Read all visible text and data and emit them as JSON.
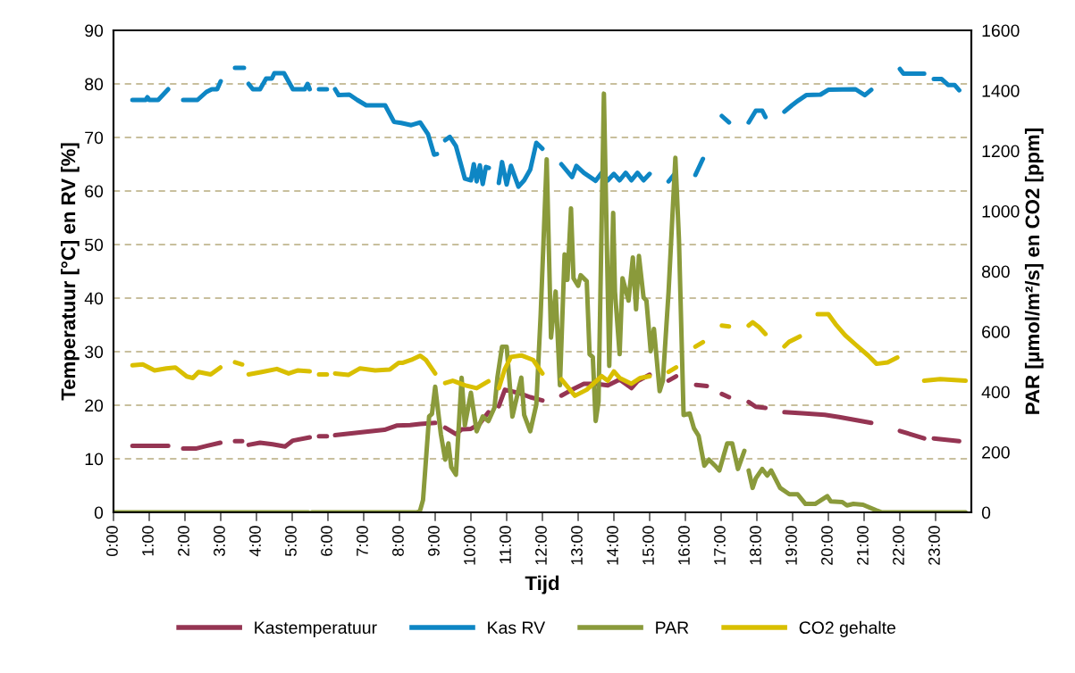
{
  "chart_data": {
    "type": "line",
    "xlabel": "Tijd",
    "ylabel": "Temperatuur [°C] en RV [%]",
    "y2label": "PAR [µmol/m²/s] en CO2 [ppm]",
    "xlim": [
      0,
      24
    ],
    "xticks": [
      {
        "value": 0,
        "label": "0:00"
      },
      {
        "value": 1,
        "label": "1:00"
      },
      {
        "value": 2,
        "label": "2:00"
      },
      {
        "value": 3,
        "label": "3:00"
      },
      {
        "value": 4,
        "label": "4:00"
      },
      {
        "value": 5,
        "label": "5:00"
      },
      {
        "value": 6,
        "label": "6:00"
      },
      {
        "value": 7,
        "label": "7:00"
      },
      {
        "value": 8,
        "label": "8:00"
      },
      {
        "value": 9,
        "label": "9:00"
      },
      {
        "value": 10,
        "label": "10:00"
      },
      {
        "value": 11,
        "label": "11:00"
      },
      {
        "value": 12,
        "label": "12:00"
      },
      {
        "value": 13,
        "label": "13:00"
      },
      {
        "value": 14,
        "label": "14:00"
      },
      {
        "value": 15,
        "label": "15:00"
      },
      {
        "value": 16,
        "label": "16:00"
      },
      {
        "value": 17,
        "label": "17:00"
      },
      {
        "value": 18,
        "label": "18:00"
      },
      {
        "value": 19,
        "label": "19:00"
      },
      {
        "value": 20,
        "label": "20:00"
      },
      {
        "value": 21,
        "label": "21:00"
      },
      {
        "value": 22,
        "label": "22:00"
      },
      {
        "value": 23,
        "label": "23:00"
      }
    ],
    "ylim": [
      0,
      90
    ],
    "yticks": [
      0,
      10,
      20,
      30,
      40,
      50,
      60,
      70,
      80,
      90
    ],
    "y2lim": [
      0,
      1600
    ],
    "y2ticks": [
      0,
      200,
      400,
      600,
      800,
      1000,
      1200,
      1400,
      1600
    ],
    "grid": "y",
    "legend": "bottom",
    "line_style": "solid",
    "marker": "none",
    "series": [
      {
        "name": "Kastemperatuur",
        "color": "#953553",
        "x": [
          0.53,
          1.2,
          1.53,
          1.74,
          1.95,
          2.3,
          2.6,
          2.99,
          3.2,
          3.4,
          3.6,
          3.69,
          3.78,
          4.1,
          4.45,
          4.8,
          5.02,
          5.49,
          5.62,
          5.75,
          5.97,
          6.08,
          6.2,
          7.0,
          7.58,
          7.92,
          8.3,
          8.58,
          9.0,
          9.14,
          9.28,
          9.58,
          9.74,
          10.0,
          10.24,
          10.49,
          10.64,
          10.78,
          10.95,
          11.33,
          11.66,
          12.0,
          12.26,
          12.53,
          12.83,
          13.16,
          13.49,
          13.83,
          14.16,
          14.49,
          14.66,
          15.0,
          15.26,
          15.53,
          15.74,
          16.0,
          16.3,
          16.6,
          16.85,
          17.02,
          17.22,
          17.5,
          17.77,
          17.97,
          18.24,
          18.5,
          18.77,
          19.27,
          19.9,
          20.3,
          21.2,
          21.6,
          22.0,
          22.68,
          22.8,
          22.95,
          23.66
        ],
        "values": [
          12.4,
          12.4,
          12.4,
          null,
          11.9,
          11.9,
          12.4,
          13.0,
          null,
          13.3,
          13.3,
          null,
          12.6,
          13.0,
          12.7,
          12.3,
          13.4,
          14.0,
          null,
          14.2,
          14.2,
          null,
          14.4,
          15.0,
          15.4,
          16.2,
          16.3,
          16.5,
          16.7,
          null,
          15.8,
          14.6,
          15.5,
          15.6,
          16.5,
          18.7,
          null,
          19.8,
          22.9,
          22.3,
          21.5,
          20.9,
          null,
          21.8,
          22.9,
          24.0,
          24.0,
          23.7,
          24.8,
          23.2,
          24.5,
          25.7,
          null,
          24.6,
          25.4,
          null,
          23.8,
          23.6,
          null,
          22.1,
          21.5,
          null,
          20.6,
          19.7,
          19.5,
          null,
          18.7,
          18.5,
          18.2,
          17.8,
          16.7,
          null,
          15.2,
          13.8,
          null,
          13.8,
          13.3
        ]
      },
      {
        "name": "Kas RV",
        "color": "#0e86c4",
        "x": [
          0.53,
          0.9,
          0.95,
          1.0,
          1.25,
          1.53,
          1.74,
          1.95,
          2.35,
          2.6,
          2.75,
          2.9,
          3.0,
          3.2,
          3.4,
          3.65,
          3.7,
          3.78,
          3.9,
          4.1,
          4.27,
          4.43,
          4.5,
          4.77,
          5.02,
          5.35,
          5.43,
          5.49,
          5.62,
          5.75,
          5.97,
          6.08,
          6.2,
          6.3,
          6.6,
          6.82,
          7.07,
          7.6,
          7.85,
          8.05,
          8.33,
          8.58,
          8.8,
          8.97,
          9.05,
          9.16,
          9.28,
          9.41,
          9.58,
          9.83,
          10.0,
          10.08,
          10.16,
          10.25,
          10.33,
          10.42,
          10.5,
          10.64,
          10.78,
          10.87,
          11.0,
          11.12,
          11.33,
          11.49,
          11.66,
          11.83,
          12.0,
          12.26,
          12.53,
          12.83,
          12.95,
          13.16,
          13.49,
          13.66,
          13.83,
          14.0,
          14.16,
          14.33,
          14.49,
          14.66,
          14.83,
          15.0,
          15.26,
          15.53,
          15.7,
          16.0,
          16.28,
          16.49,
          16.75,
          17.02,
          17.22,
          17.5,
          17.77,
          17.97,
          18.15,
          18.24,
          18.5,
          18.77,
          18.98,
          19.16,
          19.38,
          19.78,
          20.0,
          20.76,
          21.02,
          21.2,
          21.6,
          22.0,
          22.1,
          22.68,
          22.8,
          22.95,
          23.17,
          23.35,
          23.53,
          23.66
        ],
        "values": [
          77,
          77,
          77.5,
          77,
          77,
          79,
          null,
          77,
          77,
          78.5,
          79,
          79,
          80.5,
          null,
          83,
          83,
          null,
          80,
          79,
          79,
          81,
          81,
          82,
          82,
          79,
          79,
          80,
          79,
          null,
          79,
          79,
          null,
          79,
          77.9,
          78,
          77,
          76,
          76,
          72.9,
          72.7,
          72.3,
          72.8,
          70.6,
          66.8,
          66.9,
          null,
          69.5,
          70.1,
          68.4,
          62.3,
          62,
          65,
          61.8,
          64.8,
          61.3,
          64.5,
          64.3,
          null,
          61.5,
          65.4,
          61.2,
          64.7,
          60.8,
          62,
          64,
          69,
          67.9,
          null,
          65,
          62.6,
          64.7,
          63.4,
          61.9,
          63.4,
          62,
          63.2,
          62,
          63.4,
          62,
          63.4,
          62,
          63.2,
          null,
          61.8,
          63.2,
          null,
          63,
          66,
          null,
          74,
          72.8,
          null,
          72.8,
          75,
          75,
          73.8,
          null,
          74.8,
          76,
          76.9,
          77.9,
          78,
          78.9,
          79,
          77.9,
          78.9,
          null,
          82.8,
          81.9,
          81.9,
          null,
          80.9,
          80.9,
          79.8,
          79.8,
          78.8
        ]
      },
      {
        "name": "PAR",
        "color": "#8a9a3b",
        "axis": "y2",
        "x": [
          0,
          5.45,
          5.5,
          5.55,
          8.5,
          8.58,
          8.66,
          8.83,
          8.91,
          9.0,
          9.16,
          9.28,
          9.37,
          9.45,
          9.58,
          9.74,
          9.83,
          10.0,
          10.16,
          10.33,
          10.49,
          10.66,
          10.74,
          10.87,
          11.0,
          11.16,
          11.41,
          11.49,
          11.66,
          11.83,
          11.95,
          12.12,
          12.24,
          12.37,
          12.49,
          12.62,
          12.7,
          12.8,
          12.87,
          13.0,
          13.07,
          13.24,
          13.32,
          13.41,
          13.49,
          13.57,
          13.72,
          13.87,
          13.98,
          14.03,
          14.16,
          14.24,
          14.41,
          14.53,
          14.62,
          14.7,
          14.83,
          14.91,
          15.03,
          15.12,
          15.28,
          15.37,
          15.53,
          15.72,
          15.82,
          15.95,
          16.12,
          16.24,
          16.37,
          16.53,
          16.66,
          16.83,
          16.95,
          17.17,
          17.31,
          17.47,
          17.65,
          17.71,
          17.77,
          17.88,
          17.97,
          18.15,
          18.29,
          18.4,
          18.65,
          18.91,
          19.14,
          19.36,
          19.63,
          19.97,
          20.07,
          20.39,
          20.52,
          20.7,
          20.97,
          21.33,
          21.5,
          23.84
        ],
        "values": [
          0,
          0,
          null,
          0,
          0,
          7,
          41,
          318,
          327,
          417,
          259,
          175,
          229,
          150,
          125,
          447,
          289,
          397,
          269,
          318,
          303,
          348,
          447,
          550,
          550,
          318,
          447,
          323,
          269,
          358,
          654,
          1172,
          580,
          733,
          422,
          856,
          772,
          1009,
          777,
          752,
          787,
          767,
          525,
          515,
          303,
          368,
          1390,
          486,
          994,
          733,
          525,
          777,
          703,
          846,
          674,
          851,
          713,
          703,
          535,
          609,
          402,
          437,
          733,
          1177,
          906,
          323,
          328,
          279,
          254,
          155,
          175,
          155,
          139,
          229,
          229,
          144,
          204,
          null,
          139,
          81,
          113,
          144,
          122,
          139,
          81,
          60,
          60,
          28,
          28,
          54,
          36,
          34,
          23,
          28,
          25,
          7,
          0,
          0
        ]
      },
      {
        "name": "CO2 gehalte",
        "color": "#d9bf00",
        "axis": "y2",
        "x": [
          0.53,
          0.82,
          1.15,
          1.48,
          1.73,
          2.05,
          2.22,
          2.38,
          2.72,
          2.99,
          3.2,
          3.4,
          3.6,
          3.69,
          3.78,
          4.15,
          4.57,
          4.9,
          5.15,
          5.49,
          5.62,
          5.75,
          5.97,
          6.08,
          6.2,
          6.57,
          6.9,
          7.32,
          7.73,
          7.98,
          8.08,
          8.33,
          8.58,
          8.74,
          9.0,
          9.14,
          9.28,
          9.49,
          9.83,
          10.16,
          10.49,
          10.64,
          10.78,
          10.95,
          11.12,
          11.41,
          11.74,
          12.0,
          12.26,
          12.53,
          12.91,
          13.24,
          13.66,
          13.83,
          14.0,
          14.16,
          14.49,
          14.74,
          15.0,
          15.26,
          15.53,
          15.74,
          16.0,
          16.28,
          16.49,
          16.75,
          17.02,
          17.22,
          17.5,
          17.77,
          17.88,
          18.06,
          18.24,
          18.5,
          18.77,
          18.9,
          19.2,
          19.45,
          19.7,
          20.0,
          20.2,
          20.47,
          20.76,
          21.12,
          21.35,
          21.66,
          21.93,
          22.3,
          22.68,
          23.13,
          23.84
        ],
        "values": [
          488,
          491,
          471,
          478,
          481,
          451,
          446,
          466,
          458,
          481,
          null,
          498,
          491,
          null,
          458,
          466,
          476,
          461,
          471,
          468,
          null,
          458,
          458,
          null,
          461,
          456,
          478,
          471,
          474,
          496,
          496,
          506,
          520,
          506,
          461,
          null,
          429,
          437,
          422,
          412,
          435,
          null,
          412,
          476,
          516,
          521,
          506,
          461,
          null,
          442,
          387,
          407,
          452,
          437,
          468,
          446,
          427,
          446,
          452,
          null,
          466,
          481,
          null,
          550,
          565,
          null,
          620,
          617,
          null,
          620,
          631,
          615,
          592,
          null,
          551,
          566,
          584,
          null,
          658,
          658,
          625,
          588,
          557,
          520,
          493,
          498,
          514,
          null,
          437,
          442,
          437
        ]
      }
    ]
  }
}
